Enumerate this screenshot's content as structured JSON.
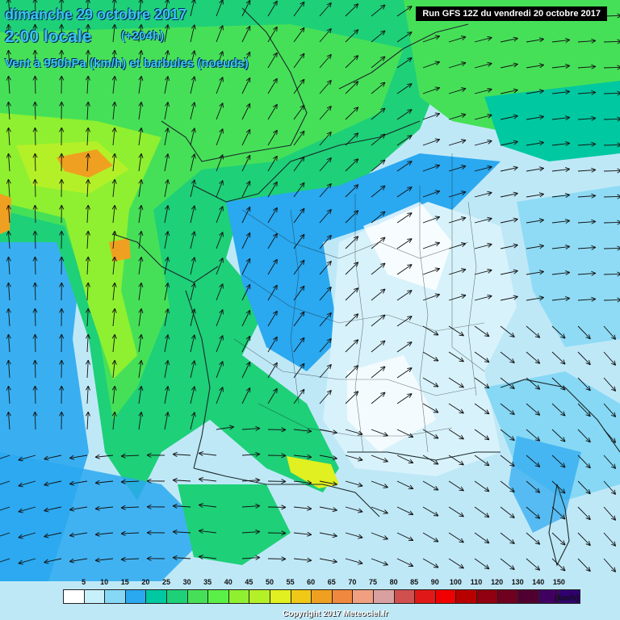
{
  "header": {
    "date_line": "dimanche 29 octobre 2017",
    "time_line": "2:00 locale",
    "lead_time": "(+204h)",
    "variable": "Vent à 950hPa (km/h) et barbules (noeuds)",
    "run": "Run GFS 12Z du vendredi 20 octobre 2017"
  },
  "legend": {
    "labels": [
      "5",
      "10",
      "15",
      "20",
      "25",
      "30",
      "35",
      "40",
      "45",
      "50",
      "55",
      "60",
      "65",
      "70",
      "75",
      "80",
      "85",
      "90",
      "100",
      "110",
      "120",
      "130",
      "140",
      "150"
    ],
    "colors": [
      "#ffffff",
      "#c8f0fa",
      "#86d8f5",
      "#2aa8f0",
      "#00c8a0",
      "#1ed078",
      "#46e058",
      "#5af048",
      "#8ef030",
      "#b4f028",
      "#e0f020",
      "#f0c818",
      "#f0a020",
      "#f08840",
      "#f0a080",
      "#d8a0a0",
      "#d05050",
      "#e01818",
      "#f00000",
      "#b80000",
      "#900010",
      "#700020",
      "#500030",
      "#400060",
      "#300070"
    ],
    "unit": "(km/h)"
  },
  "copyright": "Copyright 2017 Meteociel.fr",
  "colors": {
    "title": "#39c6f2",
    "sea_pale": "#bfe8f7",
    "land_pale": "#d8f2fb",
    "cyan": "#2aa8f0",
    "green_dark": "#1ed078",
    "green_mid": "#46e058",
    "green_light": "#8ef030",
    "yellow": "#e0f020",
    "orange": "#f0a020"
  }
}
